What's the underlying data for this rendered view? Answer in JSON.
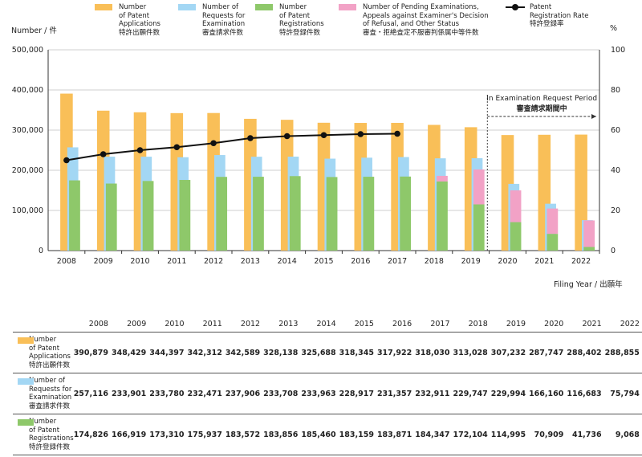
{
  "legend": [
    {
      "key": "applications",
      "lines": [
        "Number",
        "of Patent",
        "Applications"
      ],
      "jp": "特許出願件数",
      "color": "#f9bf58"
    },
    {
      "key": "requests",
      "lines": [
        "Number of",
        "Requests for",
        "Examination"
      ],
      "jp": "審査請求件数",
      "color": "#a3d7f4"
    },
    {
      "key": "registrations",
      "lines": [
        "Number",
        "of Patent",
        "Registrations"
      ],
      "jp": "特許登録件数",
      "color": "#8ec86a"
    },
    {
      "key": "pending",
      "lines": [
        "Number of Pending Examinations,",
        "Appeals against Examiner's Decision",
        "of Refusal, and Other Status"
      ],
      "jp": "審査・拒絶査定不服審判係属中等件数",
      "color": "#f2a2c6"
    },
    {
      "key": "rate",
      "lines": [
        "Patent",
        "Registration Rate"
      ],
      "jp": "特許登録率",
      "color": "#111111"
    }
  ],
  "y_left_title": "Number / 件",
  "y_right_title": "%",
  "x_title": "Filing Year / 出願年",
  "annotation": {
    "en": "In Examination Request Period",
    "jp": "審査請求期間中"
  },
  "chart_data": {
    "type": "bar",
    "title": "",
    "categories": [
      "2008",
      "2009",
      "2010",
      "2011",
      "2012",
      "2013",
      "2014",
      "2015",
      "2016",
      "2017",
      "2018",
      "2019",
      "2020",
      "2021",
      "2022"
    ],
    "ylim": [
      0,
      500000
    ],
    "yticks": [
      0,
      100000,
      200000,
      300000,
      400000,
      500000
    ],
    "ytick_labels": [
      "0",
      "100,000",
      "200,000",
      "300,000",
      "400,000",
      "500,000"
    ],
    "y2lim": [
      0,
      100
    ],
    "y2ticks": [
      0,
      20,
      40,
      60,
      80,
      100
    ],
    "series": [
      {
        "name": "Number of Patent Applications",
        "key": "applications",
        "values": [
          390879,
          348429,
          344397,
          342312,
          342589,
          328138,
          325688,
          318345,
          317922,
          318030,
          313028,
          307232,
          287747,
          288402,
          288855
        ]
      },
      {
        "name": "Number of Requests for Examination",
        "key": "requests",
        "values": [
          257116,
          233901,
          233780,
          232471,
          237906,
          233708,
          233963,
          228917,
          231357,
          232911,
          229747,
          229994,
          166160,
          116683,
          75794
        ]
      },
      {
        "name": "Number of Patent Registrations",
        "key": "registrations",
        "values": [
          174826,
          166919,
          173310,
          175937,
          183572,
          183856,
          185460,
          183159,
          183871,
          184347,
          172104,
          114995,
          70909,
          41736,
          9068
        ]
      },
      {
        "name": "Number of Pending Examinations, Appeals and Other Status",
        "key": "pending",
        "values": [
          0,
          0,
          0,
          0,
          0,
          0,
          0,
          0,
          0,
          0,
          14000,
          87000,
          79000,
          63000,
          66000
        ]
      },
      {
        "name": "Patent Registration Rate",
        "key": "rate",
        "axis": "right",
        "values": [
          45,
          48,
          50,
          51.5,
          53.5,
          56,
          57,
          57.5,
          58,
          58.2,
          null,
          null,
          null,
          null,
          null
        ]
      }
    ]
  },
  "table": {
    "years": [
      "2008",
      "2009",
      "2010",
      "2011",
      "2012",
      "2013",
      "2014",
      "2015",
      "2016",
      "2017",
      "2018",
      "2019",
      "2020",
      "2021",
      "2022"
    ],
    "rows": [
      {
        "key": "applications",
        "lines": [
          "Number",
          "of Patent",
          "Applications"
        ],
        "jp": "特許出願件数",
        "color": "#f9bf58",
        "cells": [
          "390,879",
          "348,429",
          "344,397",
          "342,312",
          "342,589",
          "328,138",
          "325,688",
          "318,345",
          "317,922",
          "318,030",
          "313,028",
          "307,232",
          "287,747",
          "288,402",
          "288,855"
        ]
      },
      {
        "key": "requests",
        "lines": [
          "Number of",
          "Requests for",
          "Examination"
        ],
        "jp": "審査請求件数",
        "color": "#a3d7f4",
        "cells": [
          "257,116",
          "233,901",
          "233,780",
          "232,471",
          "237,906",
          "233,708",
          "233,963",
          "228,917",
          "231,357",
          "232,911",
          "229,747",
          "229,994",
          "166,160",
          "116,683",
          "75,794"
        ]
      },
      {
        "key": "registrations",
        "lines": [
          "Number",
          "of Patent",
          "Registrations"
        ],
        "jp": "特許登録件数",
        "color": "#8ec86a",
        "cells": [
          "174,826",
          "166,919",
          "173,310",
          "175,937",
          "183,572",
          "183,856",
          "185,460",
          "183,159",
          "183,871",
          "184,347",
          "172,104",
          "114,995",
          "70,909",
          "41,736",
          "9,068"
        ]
      }
    ]
  }
}
